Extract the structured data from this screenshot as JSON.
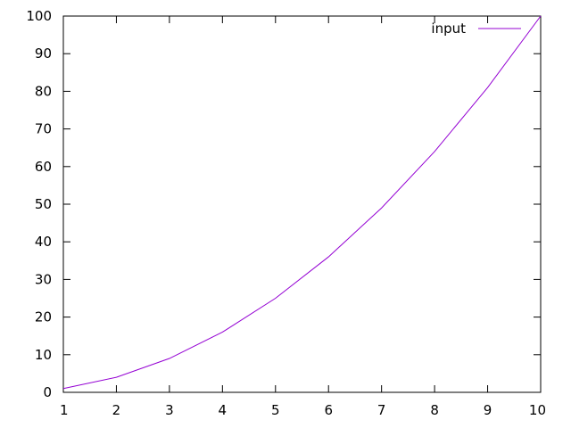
{
  "chart_data": {
    "type": "line",
    "x": [
      1,
      2,
      3,
      4,
      5,
      6,
      7,
      8,
      9,
      10
    ],
    "series": [
      {
        "name": "input",
        "color": "#9400d3",
        "values": [
          1,
          4,
          9,
          16,
          25,
          36,
          49,
          64,
          81,
          100
        ]
      }
    ],
    "xlim": [
      1,
      10
    ],
    "ylim": [
      0,
      100
    ],
    "xticks": [
      1,
      2,
      3,
      4,
      5,
      6,
      7,
      8,
      9,
      10
    ],
    "yticks": [
      0,
      10,
      20,
      30,
      40,
      50,
      60,
      70,
      80,
      90,
      100
    ],
    "grid": false,
    "legend_position": "top-right"
  }
}
